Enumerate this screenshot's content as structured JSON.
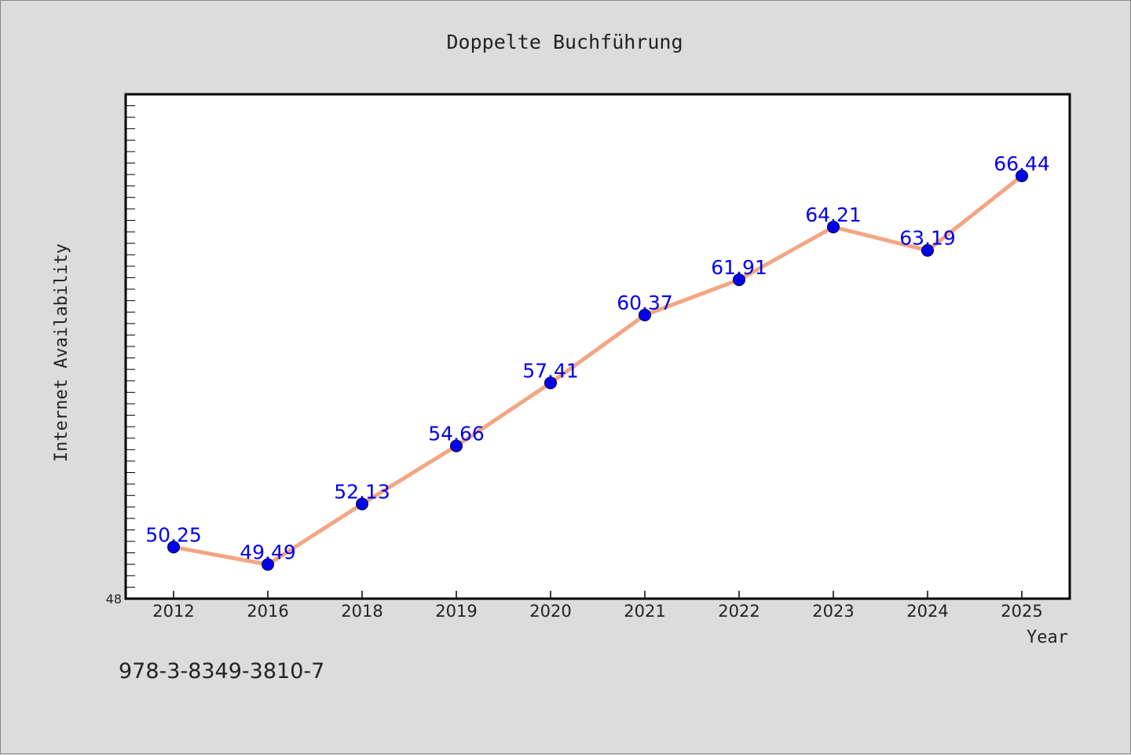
{
  "chart_data": {
    "type": "line",
    "title": "Doppelte Buchführung",
    "xlabel": "Year",
    "ylabel": "Internet Availability",
    "categories": [
      "2012",
      "2016",
      "2018",
      "2019",
      "2020",
      "2021",
      "2022",
      "2023",
      "2024",
      "2025"
    ],
    "series": [
      {
        "values": [
          50.25,
          49.49,
          52.13,
          54.66,
          57.41,
          60.37,
          61.91,
          64.21,
          63.19,
          66.44
        ],
        "data_labels": [
          "50.25",
          "49.49",
          "52.13",
          "54.66",
          "57.41",
          "60.37",
          "61.91",
          "64.21",
          "63.19",
          "66.44"
        ]
      }
    ],
    "ylim": [
      48,
      70
    ],
    "yticks_labeled": [
      "48"
    ],
    "grid": false,
    "line_color": "#f4a582",
    "marker_color": "#0000ee",
    "label_color": "#0000ee"
  },
  "footnote": "978-3-8349-3810-7"
}
